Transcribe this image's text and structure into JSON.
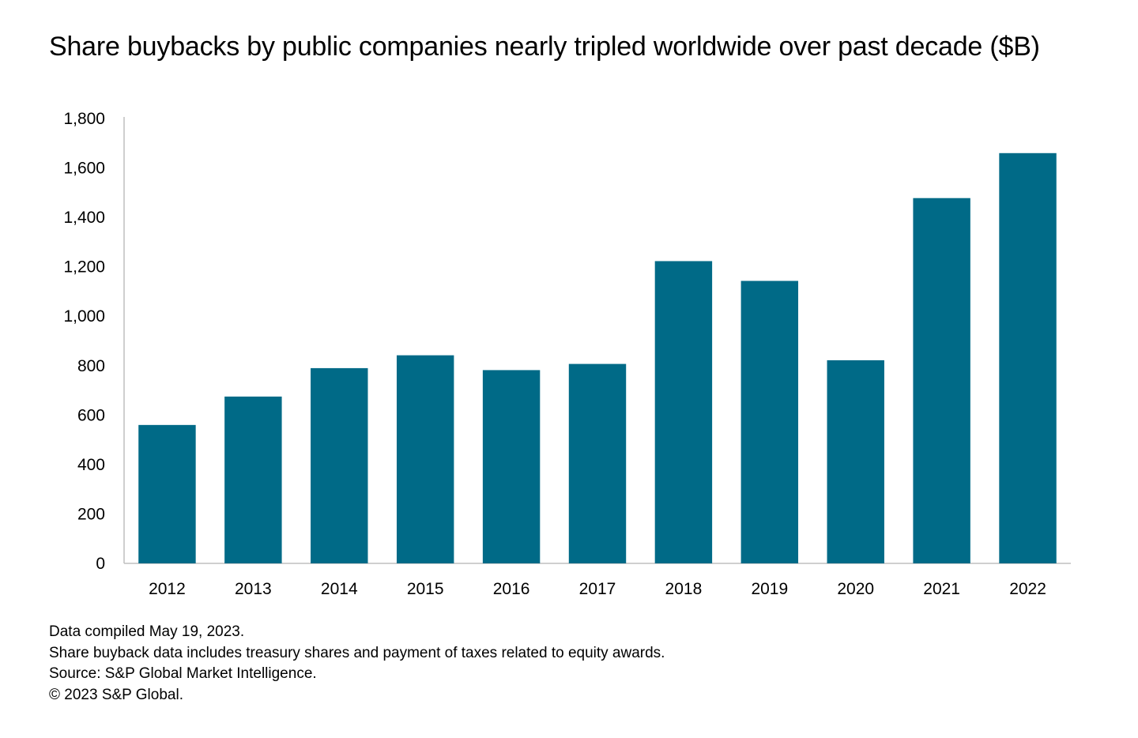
{
  "title": "Share buybacks by public companies nearly tripled worldwide over past decade ($B)",
  "notes": [
    "Data compiled May 19, 2023.",
    "Share buyback data includes treasury shares and payment of taxes related to equity awards.",
    "Source: S&P Global Market Intelligence.",
    "© 2023 S&P Global."
  ],
  "colors": {
    "bar": "#006a87",
    "axis": "#bfbfbf",
    "text": "#000000"
  },
  "chart_data": {
    "type": "bar",
    "title": "Share buybacks by public companies nearly tripled worldwide over past decade ($B)",
    "xlabel": "",
    "ylabel": "",
    "categories": [
      "2012",
      "2013",
      "2014",
      "2015",
      "2016",
      "2017",
      "2018",
      "2019",
      "2020",
      "2021",
      "2022"
    ],
    "values": [
      560,
      675,
      790,
      842,
      782,
      807,
      1223,
      1143,
      822,
      1478,
      1660
    ],
    "ylim": [
      0,
      1800
    ],
    "yticks": [
      0,
      200,
      400,
      600,
      800,
      1000,
      1200,
      1400,
      1600,
      1800
    ],
    "ytick_labels": [
      "0",
      "200",
      "400",
      "600",
      "800",
      "1,000",
      "1,200",
      "1,400",
      "1,600",
      "1,800"
    ],
    "grid": false,
    "legend": "none"
  }
}
